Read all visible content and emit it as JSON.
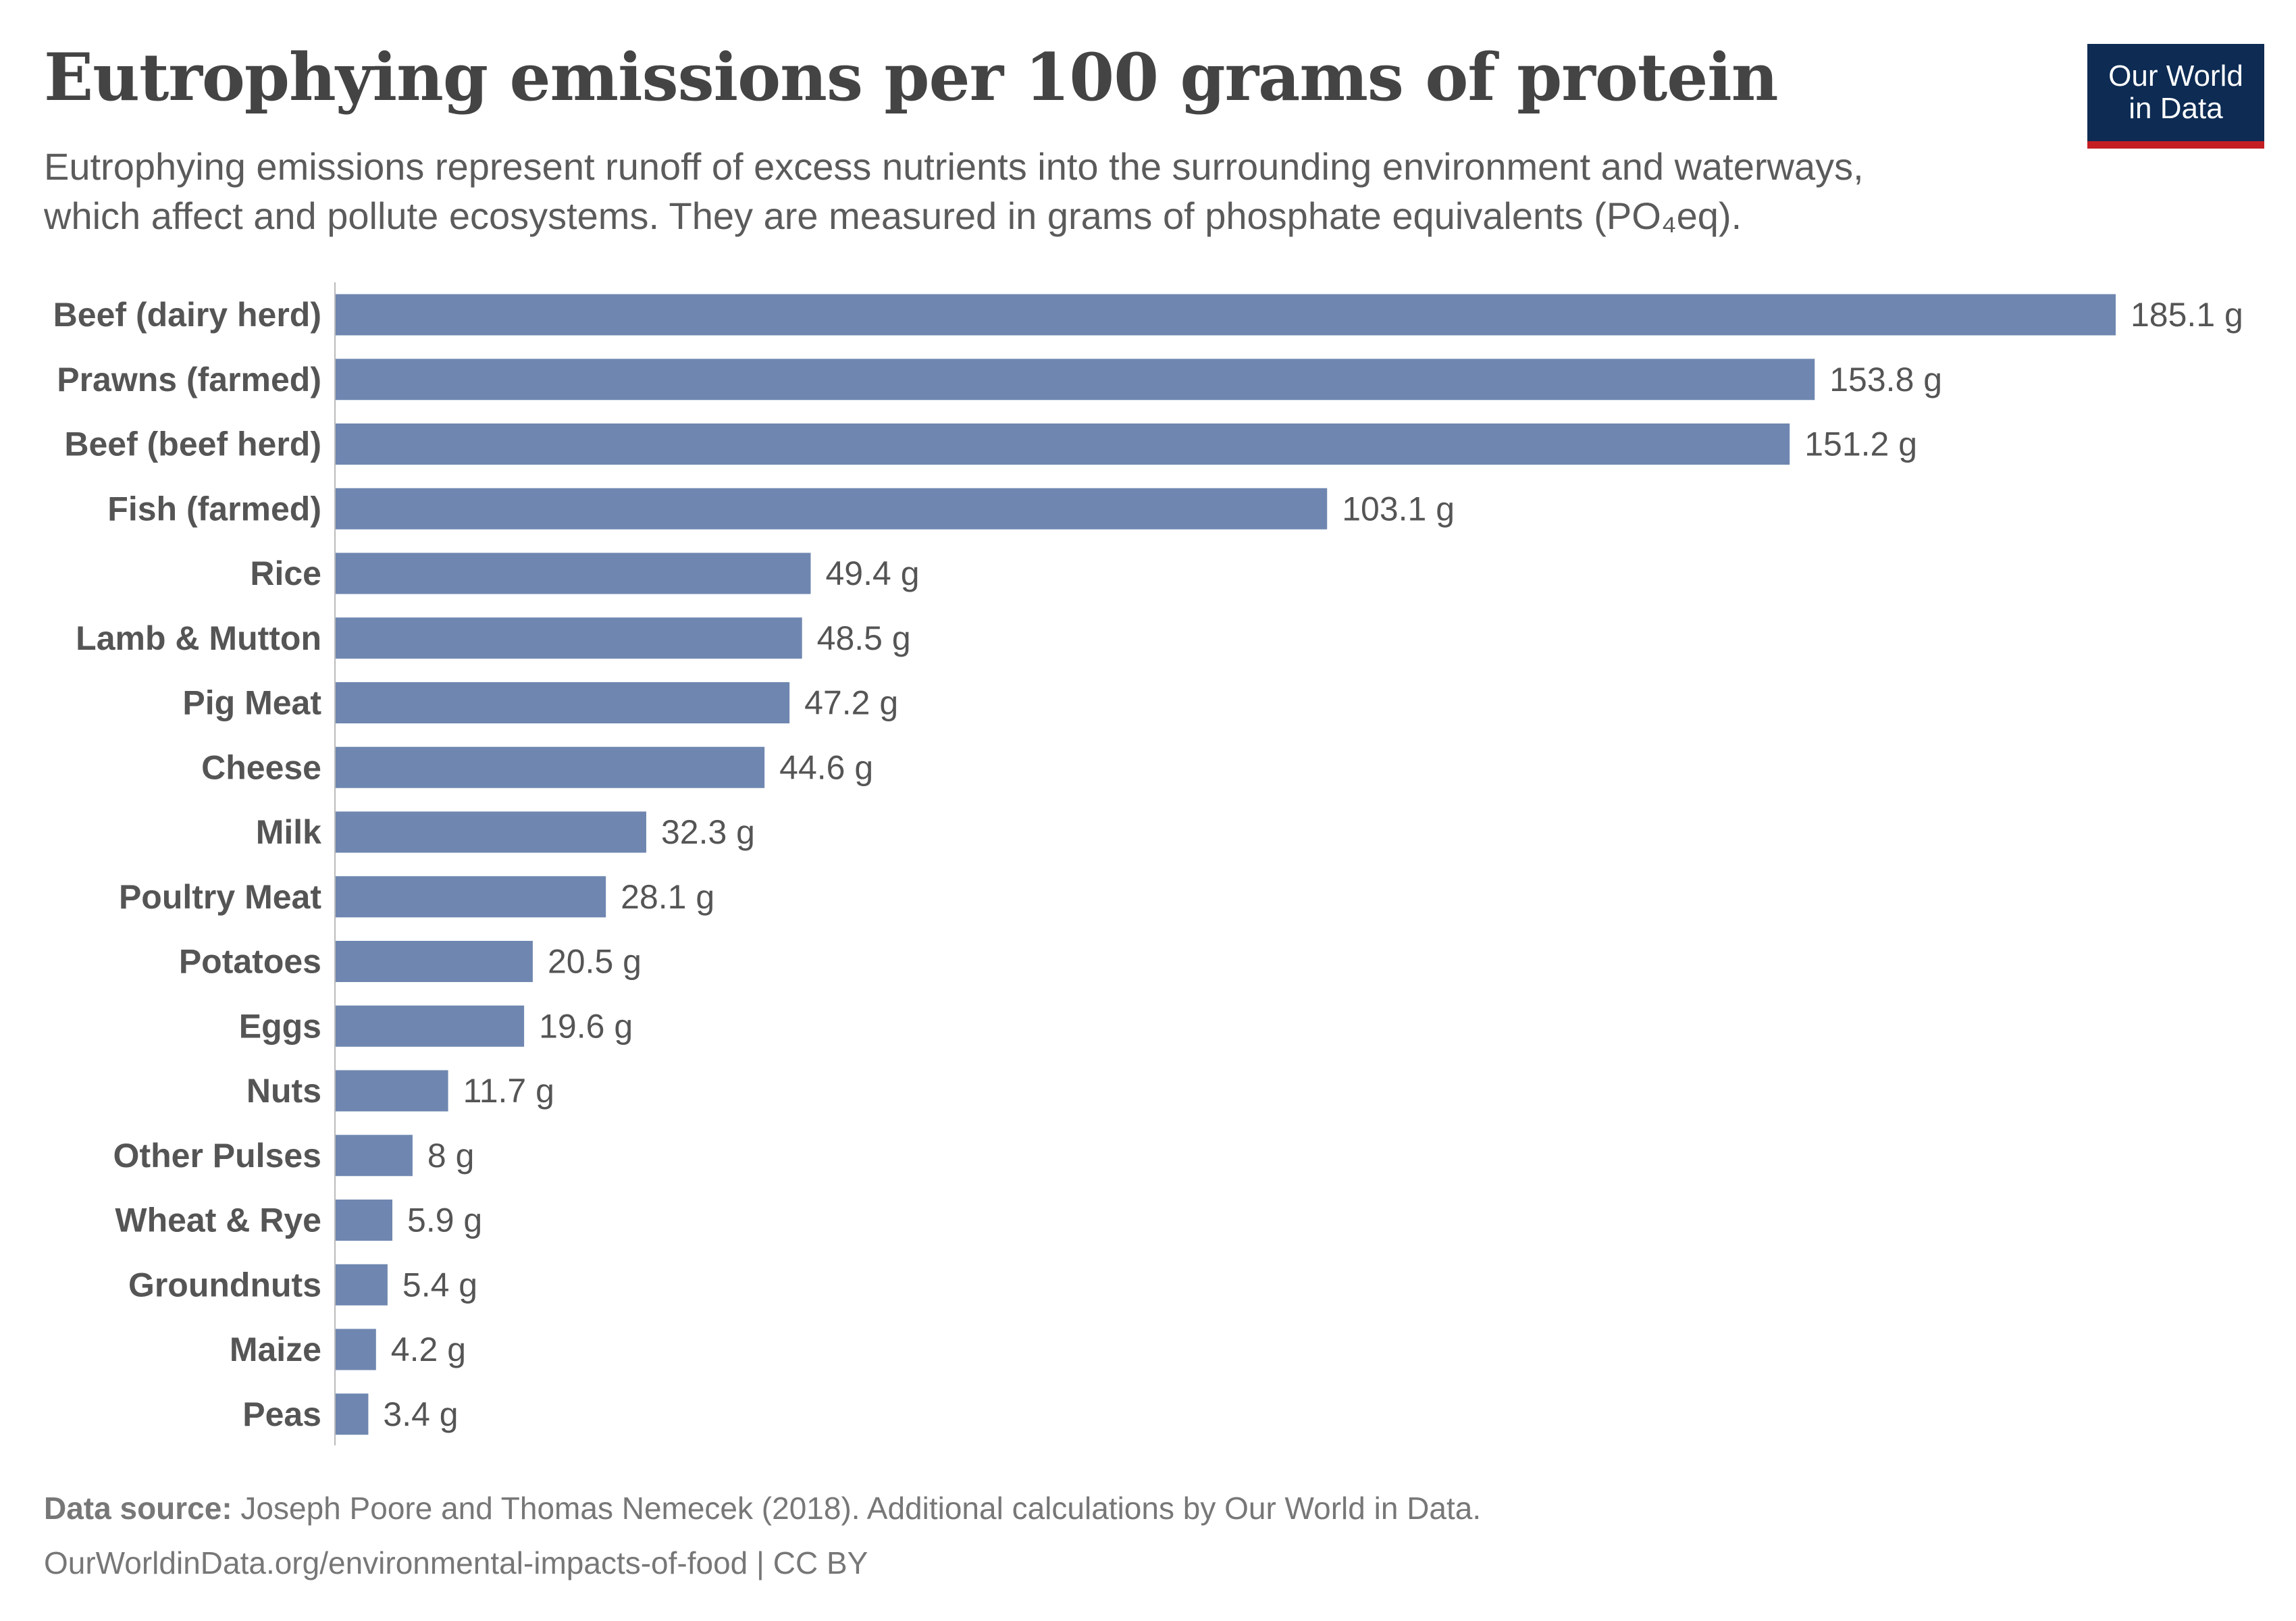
{
  "header": {
    "title": "Eutrophying emissions per 100 grams of protein",
    "subtitle_line1": "Eutrophying emissions represent runoff of excess nutrients into the surrounding environment and waterways,",
    "subtitle_line2": "which affect and pollute ecosystems. They are measured in grams of phosphate equivalents (PO₄eq)."
  },
  "logo": {
    "line1": "Our World",
    "line2": "in Data"
  },
  "chart_data": {
    "type": "bar",
    "orientation": "horizontal",
    "title": "Eutrophying emissions per 100 grams of protein",
    "xlabel": "",
    "ylabel": "",
    "unit": "g",
    "bar_color": "#6f87b0",
    "xlim": [
      0,
      185.1
    ],
    "categories": [
      "Beef (dairy herd)",
      "Prawns (farmed)",
      "Beef (beef herd)",
      "Fish (farmed)",
      "Rice",
      "Lamb & Mutton",
      "Pig Meat",
      "Cheese",
      "Milk",
      "Poultry Meat",
      "Potatoes",
      "Eggs",
      "Nuts",
      "Other Pulses",
      "Wheat & Rye",
      "Groundnuts",
      "Maize",
      "Peas"
    ],
    "values": [
      185.1,
      153.8,
      151.2,
      103.1,
      49.4,
      48.5,
      47.2,
      44.6,
      32.3,
      28.1,
      20.5,
      19.6,
      11.7,
      8,
      5.9,
      5.4,
      4.2,
      3.4
    ],
    "value_labels": [
      "185.1 g",
      "153.8 g",
      "151.2 g",
      "103.1 g",
      "49.4 g",
      "48.5 g",
      "47.2 g",
      "44.6 g",
      "32.3 g",
      "28.1 g",
      "20.5 g",
      "19.6 g",
      "11.7 g",
      "8 g",
      "5.9 g",
      "5.4 g",
      "4.2 g",
      "3.4 g"
    ]
  },
  "footer": {
    "source_label": "Data source:",
    "source_text": " Joseph Poore and Thomas Nemecek (2018). Additional calculations by Our World in Data.",
    "link_text": "OurWorldinData.org/environmental-impacts-of-food | CC BY"
  }
}
